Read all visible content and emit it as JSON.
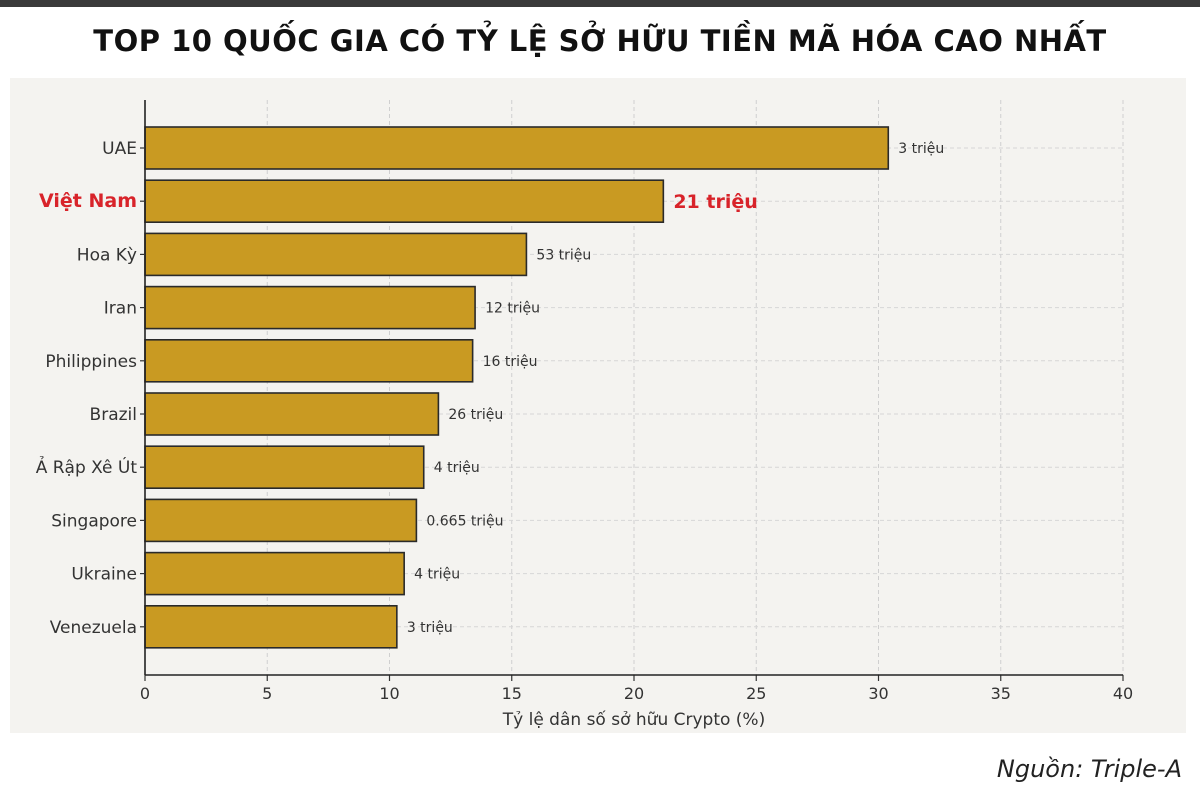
{
  "header": {
    "title": "TOP 10 QUỐC GIA CÓ TỶ LỆ SỞ HỮU TIỀN MÃ HÓA CAO NHẤT"
  },
  "footer": {
    "source": "Nguồn: Triple-A"
  },
  "chart_data": {
    "type": "bar",
    "orientation": "horizontal",
    "title": "TOP 10 QUỐC GIA CÓ TỶ LỆ SỞ HỮU TIỀN MÃ HÓA CAO NHẤT",
    "xlabel": "Tỷ lệ dân số sở hữu Crypto (%)",
    "ylabel": "",
    "xlim": [
      0,
      40
    ],
    "xticks": [
      0,
      5,
      10,
      15,
      20,
      25,
      30,
      35,
      40
    ],
    "grid": true,
    "bar_color": "#c99a22",
    "bar_edge_color": "#2a2a2a",
    "highlight_color": "#d8232a",
    "categories": [
      "UAE",
      "Việt Nam",
      "Hoa Kỳ",
      "Iran",
      "Philippines",
      "Brazil",
      "Ả Rập Xê Út",
      "Singapore",
      "Ukraine",
      "Venezuela"
    ],
    "values": [
      30.4,
      21.2,
      15.6,
      13.5,
      13.4,
      12.0,
      11.4,
      11.1,
      10.6,
      10.3
    ],
    "data_labels": [
      "3 triệu",
      "21 triệu",
      "53 triệu",
      "12 triệu",
      "16 triệu",
      "26 triệu",
      "4 triệu",
      "0.665 triệu",
      "4 triệu",
      "3 triệu"
    ],
    "highlight": [
      false,
      true,
      false,
      false,
      false,
      false,
      false,
      false,
      false,
      false
    ]
  }
}
